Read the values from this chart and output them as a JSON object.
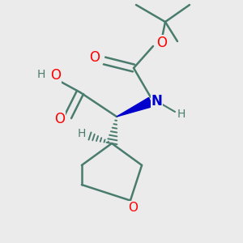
{
  "bg_color": "#ebebeb",
  "bond_color": "#4a7c6e",
  "oxygen_color": "#ff0000",
  "nitrogen_color": "#0000cc",
  "line_width": 1.8,
  "figsize": [
    3.0,
    3.0
  ],
  "dpi": 100,
  "xlim": [
    0,
    10
  ],
  "ylim": [
    0,
    10
  ]
}
